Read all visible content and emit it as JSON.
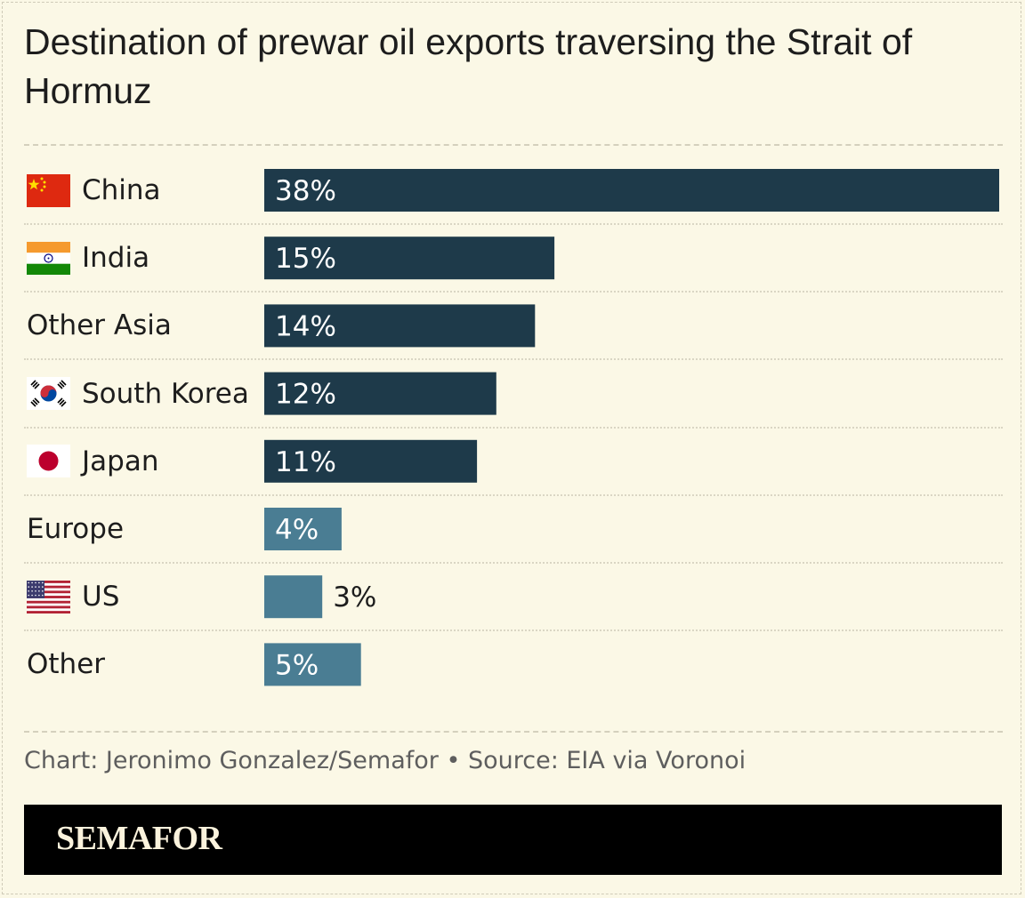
{
  "chart_data": {
    "type": "bar",
    "orientation": "horizontal",
    "title": "Destination of prewar oil exports traversing the Strait of Hormuz",
    "categories": [
      "China",
      "India",
      "Other Asia",
      "South Korea",
      "Japan",
      "Europe",
      "US",
      "Other"
    ],
    "values": [
      38,
      15,
      14,
      12,
      11,
      4,
      3,
      5
    ],
    "value_labels": [
      "38%",
      "15%",
      "14%",
      "12%",
      "11%",
      "4%",
      "3%",
      "5%"
    ],
    "flags": [
      "china-flag-icon",
      "india-flag-icon",
      null,
      "south-korea-flag-icon",
      "japan-flag-icon",
      null,
      "us-flag-icon",
      null
    ],
    "bar_colors": [
      "#1e3a4a",
      "#1e3a4a",
      "#1e3a4a",
      "#1e3a4a",
      "#1e3a4a",
      "#4a7d93",
      "#4a7d93",
      "#4a7d93"
    ],
    "xlim": [
      0,
      38
    ],
    "grid": false,
    "legend": "none"
  },
  "footer": {
    "source": "Chart: Jeronimo Gonzalez/Semafor • Source: EIA via Voronoi",
    "brand": "SEMAFOR"
  }
}
